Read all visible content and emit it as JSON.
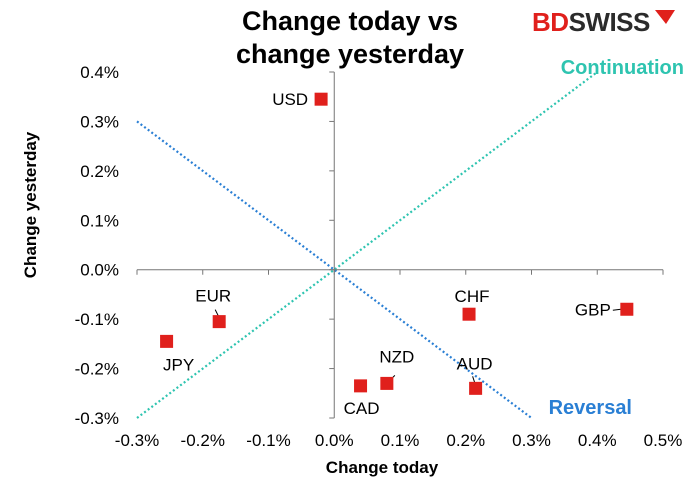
{
  "brand": {
    "name_left": "BD",
    "name_right": "SWISS",
    "color_left": "#e0201c",
    "color_right": "#2b2b2b"
  },
  "chart_data": {
    "type": "scatter",
    "title_lines": [
      "Change today vs",
      "change yesterday"
    ],
    "xlabel": "Change today",
    "ylabel": "Change yesterday",
    "xlim": [
      -0.3,
      0.5
    ],
    "ylim": [
      -0.3,
      0.4
    ],
    "x_ticks": [
      -0.3,
      -0.2,
      -0.1,
      0.0,
      0.1,
      0.2,
      0.3,
      0.4,
      0.5
    ],
    "x_tick_labels": [
      "-0.3%",
      "-0.2%",
      "-0.1%",
      "0.0%",
      "0.1%",
      "0.2%",
      "0.3%",
      "0.4%",
      "0.5%"
    ],
    "y_ticks": [
      0.4,
      0.3,
      0.2,
      0.1,
      0.0,
      -0.1,
      -0.2,
      -0.3
    ],
    "y_tick_labels": [
      "0.4%",
      "0.3%",
      "0.2%",
      "0.1%",
      "0.0%",
      "-0.1%",
      "-0.2%",
      "-0.3%"
    ],
    "grid": false,
    "marker_color": "#e0201c",
    "points": [
      {
        "label": "USD",
        "x": -0.02,
        "y": 0.345
      },
      {
        "label": "EUR",
        "x": -0.175,
        "y": -0.105
      },
      {
        "label": "JPY",
        "x": -0.255,
        "y": -0.145
      },
      {
        "label": "CHF",
        "x": 0.205,
        "y": -0.09
      },
      {
        "label": "GBP",
        "x": 0.445,
        "y": -0.08
      },
      {
        "label": "NZD",
        "x": 0.08,
        "y": -0.23
      },
      {
        "label": "CAD",
        "x": 0.04,
        "y": -0.235
      },
      {
        "label": "AUD",
        "x": 0.215,
        "y": -0.24
      }
    ],
    "reference_lines": [
      {
        "name": "Continuation",
        "from": [
          -0.3,
          -0.3
        ],
        "to": [
          0.4,
          0.4
        ],
        "color": "#2ec4b0"
      },
      {
        "name": "Reversal",
        "from": [
          -0.3,
          0.3
        ],
        "to": [
          0.3,
          -0.3
        ],
        "color": "#2a7fd4"
      }
    ]
  }
}
